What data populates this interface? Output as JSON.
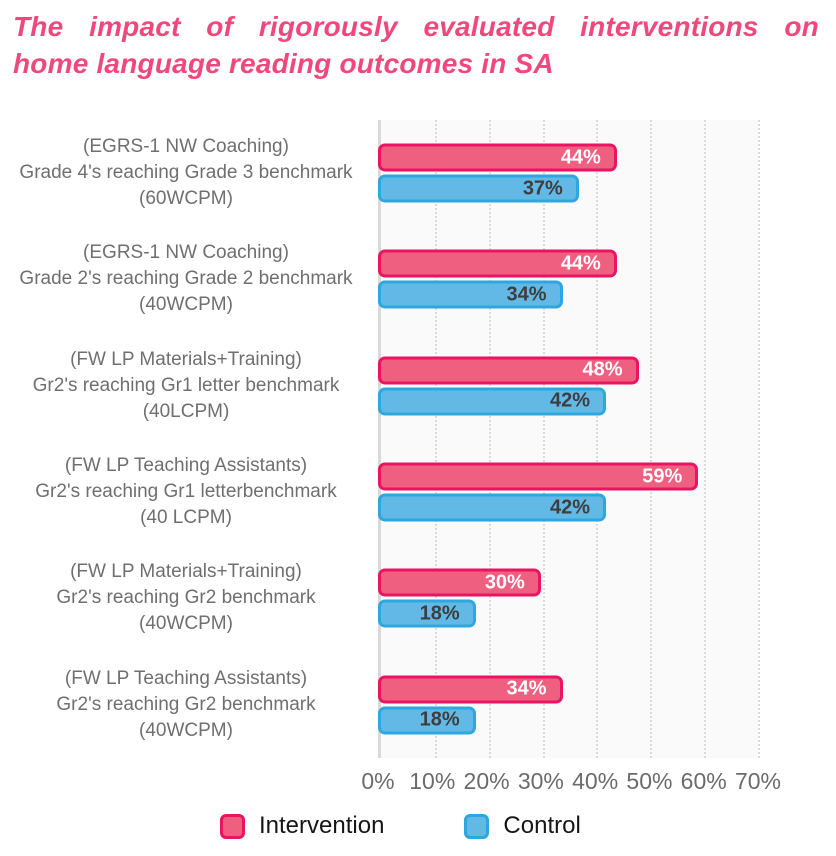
{
  "title": {
    "text": "The impact of rigorously evaluated interventions on home language reading outcomes in SA",
    "lines": [
      "The impact of rigorously evaluated interventions on",
      "home language reading outcomes in SA"
    ],
    "color": "#F0487C"
  },
  "chart_data": {
    "type": "bar",
    "orientation": "horizontal",
    "grid": "vertical-dotted",
    "plot_background": "#FAFAFA",
    "gridline_color": "#DBDBDB",
    "axis_line_color": "#D9D9D9",
    "category_text_color": "#6F6F6F",
    "axis_text_color": "#6B6B6B",
    "categories": [
      [
        "(EGRS-1 NW Coaching)",
        "Grade 4's reaching Grade 3 benchmark",
        "(60WCPM)"
      ],
      [
        "(EGRS-1 NW Coaching)",
        "Grade 2's reaching Grade 2 benchmark",
        "(40WCPM)"
      ],
      [
        "(FW LP Materials+Training)",
        "Gr2's reaching Gr1 letter benchmark",
        "(40LCPM)"
      ],
      [
        "(FW LP Teaching Assistants)",
        "Gr2's reaching Gr1 letterbenchmark",
        "(40 LCPM)"
      ],
      [
        "(FW LP Materials+Training)",
        "Gr2's reaching Gr2 benchmark",
        "(40WCPM)"
      ],
      [
        "(FW LP Teaching Assistants)",
        "Gr2's reaching Gr2 benchmark",
        "(40WCPM)"
      ]
    ],
    "series": [
      {
        "name": "Intervention",
        "fill": "#EF5F80",
        "stroke": "#EB1463",
        "label_color": "#FFFFFF",
        "values": [
          44,
          44,
          48,
          59,
          30,
          34
        ]
      },
      {
        "name": "Control",
        "fill": "#63B9E6",
        "stroke": "#2EA7DE",
        "label_color": "#3E3E3E",
        "values": [
          37,
          34,
          42,
          42,
          18,
          18
        ]
      }
    ],
    "value_suffix": "%",
    "xlim": [
      0,
      70
    ],
    "xticks": [
      "0%",
      "10%",
      "20%",
      "30%",
      "40%",
      "50%",
      "60%",
      "70%"
    ],
    "legend_position": "bottom",
    "legend": [
      "Intervention",
      "Control"
    ]
  }
}
